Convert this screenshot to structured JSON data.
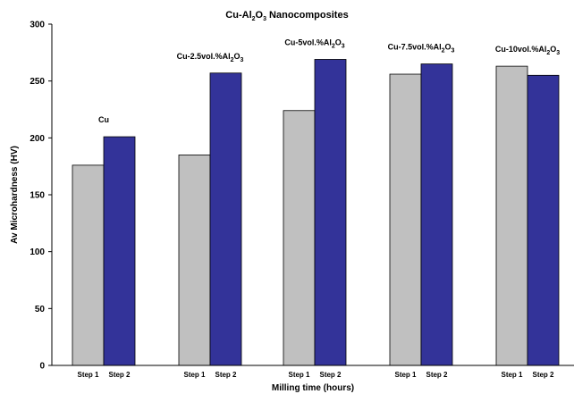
{
  "chart_data": {
    "type": "bar",
    "title": {
      "pre": "Cu-Al",
      "sub1": "2",
      "mid": "O",
      "sub2": "3",
      "post": " Nanocomposites"
    },
    "xlabel": "Milling time (hours)",
    "ylabel": "Av Microhardness (HV)",
    "ylim": [
      0,
      300
    ],
    "yticks": [
      0,
      50,
      100,
      150,
      200,
      250,
      300
    ],
    "grid": false,
    "legend": "none",
    "colors": {
      "Step 1": "#c0c0c0",
      "Step 2": "#333399"
    },
    "groups": [
      {
        "label": {
          "pre": "Cu"
        },
        "bars": [
          {
            "name": "Step 1",
            "value": 176
          },
          {
            "name": "Step 2",
            "value": 201
          }
        ]
      },
      {
        "label": {
          "pre": "Cu-2.5vol.%Al",
          "sub1": "2",
          "mid": "O",
          "sub2": "3"
        },
        "bars": [
          {
            "name": "Step 1",
            "value": 185
          },
          {
            "name": "Step 2",
            "value": 257
          }
        ]
      },
      {
        "label": {
          "pre": "Cu-5vol.%Al",
          "sub1": "2",
          "mid": "O",
          "sub2": "3"
        },
        "bars": [
          {
            "name": "Step 1",
            "value": 224
          },
          {
            "name": "Step 2",
            "value": 269
          }
        ]
      },
      {
        "label": {
          "pre": "Cu-7.5vol.%Al",
          "sub1": "2",
          "mid": "O",
          "sub2": "3"
        },
        "bars": [
          {
            "name": "Step 1",
            "value": 256
          },
          {
            "name": "Step 2",
            "value": 265
          }
        ]
      },
      {
        "label": {
          "pre": "Cu-10vol.%Al",
          "sub1": "2",
          "mid": "O",
          "sub2": "3"
        },
        "bars": [
          {
            "name": "Step 1",
            "value": 263
          },
          {
            "name": "Step 2",
            "value": 255
          }
        ]
      }
    ]
  }
}
